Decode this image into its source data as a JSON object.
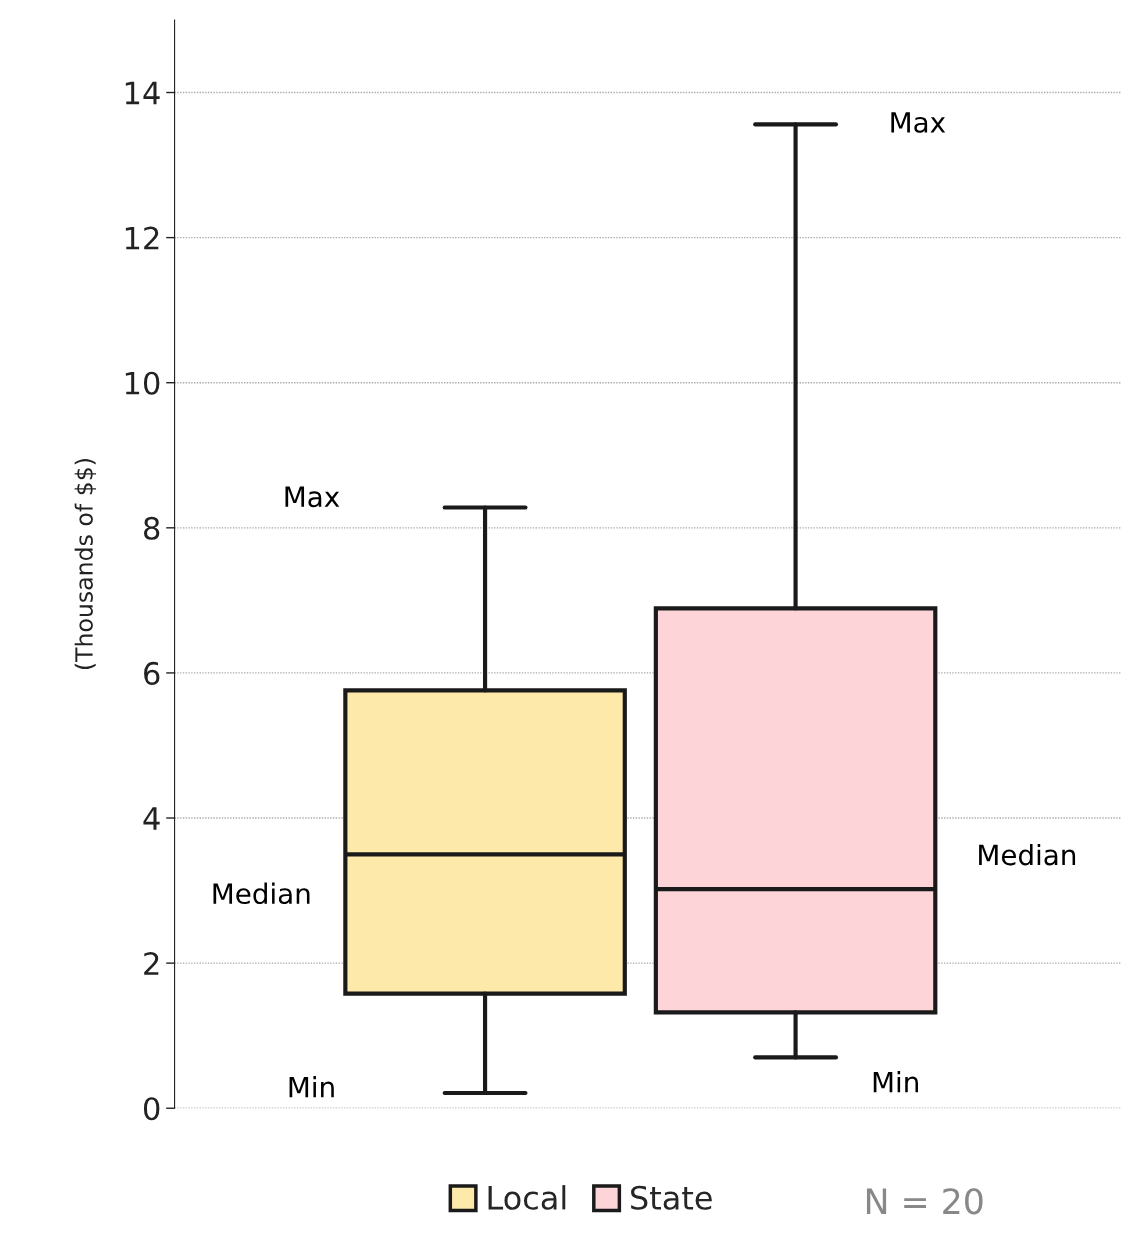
{
  "chart_data": {
    "type": "box",
    "ylabel": "(Thousands of $$)",
    "categories": [
      null,
      null
    ],
    "series": [
      {
        "name": "Local",
        "color": "#fde9aa",
        "boxes": [
          {
            "low": 0.21,
            "q1": 1.58,
            "median": 3.5,
            "q3": 5.76,
            "high": 8.28
          },
          null
        ]
      },
      {
        "name": "State",
        "color": "#fdd5d9",
        "boxes": [
          null,
          {
            "low": 0.7,
            "q1": 1.32,
            "median": 3.02,
            "q3": 6.89,
            "high": 13.56
          }
        ]
      }
    ],
    "ylim": [
      0,
      15
    ],
    "yticks": [
      0,
      2,
      4,
      6,
      8,
      10,
      12,
      14
    ],
    "grid": "y",
    "legend": "bottom",
    "annotations": [
      "Max",
      "Median",
      "Min",
      "Max",
      "Median",
      "Min",
      "N = 20"
    ]
  }
}
